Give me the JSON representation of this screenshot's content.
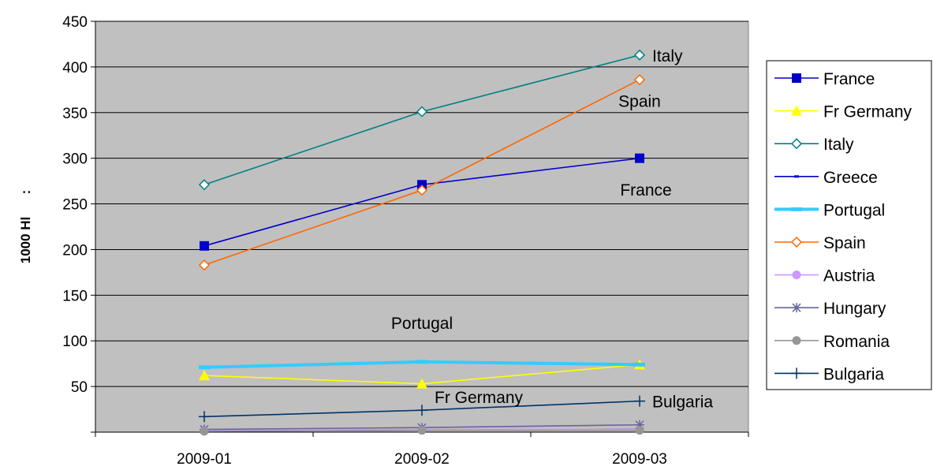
{
  "chart_data": {
    "type": "line",
    "title": "",
    "xlabel": "",
    "ylabel": "1000 Hl      :",
    "categories": [
      "2009-01",
      "2009-02",
      "2009-03"
    ],
    "ylim": [
      0,
      450
    ],
    "yticks": [
      50,
      100,
      150,
      200,
      250,
      300,
      350,
      400,
      450
    ],
    "grid": true,
    "legend_position": "right",
    "plot_background": "#C0C0C0",
    "series": [
      {
        "name": "France",
        "values": [
          204,
          271,
          300
        ],
        "color": "#0000CC",
        "marker": "square",
        "width": 1.6
      },
      {
        "name": "Fr Germany",
        "values": [
          62,
          53,
          74
        ],
        "color": "#FFFF00",
        "marker": "triangle",
        "width": 1.6
      },
      {
        "name": "Italy",
        "values": [
          271,
          351,
          413
        ],
        "color": "#008080",
        "marker": "diamond-open",
        "width": 1.6
      },
      {
        "name": "Greece",
        "values": [
          1,
          2,
          3
        ],
        "color": "#0000CC",
        "marker": "dash",
        "width": 1.6
      },
      {
        "name": "Portugal",
        "values": [
          71,
          77,
          74
        ],
        "color": "#33CCFF",
        "marker": "bar",
        "width": 4
      },
      {
        "name": "Spain",
        "values": [
          183,
          265,
          386
        ],
        "color": "#FF6600",
        "marker": "diamond-open",
        "width": 1.6
      },
      {
        "name": "Austria",
        "values": [
          2,
          3,
          3
        ],
        "color": "#CC99FF",
        "marker": "circle",
        "width": 1.6
      },
      {
        "name": "Hungary",
        "values": [
          3,
          5,
          8
        ],
        "color": "#666699",
        "marker": "star",
        "width": 1.6
      },
      {
        "name": "Romania",
        "values": [
          1,
          2,
          2
        ],
        "color": "#969696",
        "marker": "circle",
        "width": 1.6
      },
      {
        "name": "Bulgaria",
        "values": [
          17,
          24,
          34
        ],
        "color": "#003366",
        "marker": "plus",
        "width": 1.6
      }
    ],
    "annotations": [
      {
        "text": "Italy",
        "x": "2009-03",
        "y": 413,
        "anchor": "right"
      },
      {
        "text": "Spain",
        "x": "2009-03",
        "y": 363,
        "anchor": "center"
      },
      {
        "text": "France",
        "x": "2009-03",
        "y": 266,
        "anchor": "left-shift"
      },
      {
        "text": "Portugal",
        "x": "2009-02",
        "y": 120,
        "anchor": "center"
      },
      {
        "text": "Fr Germany",
        "x": "2009-02",
        "y": 39,
        "anchor": "right"
      },
      {
        "text": "Bulgaria",
        "x": "2009-03",
        "y": 34,
        "anchor": "right"
      }
    ]
  }
}
